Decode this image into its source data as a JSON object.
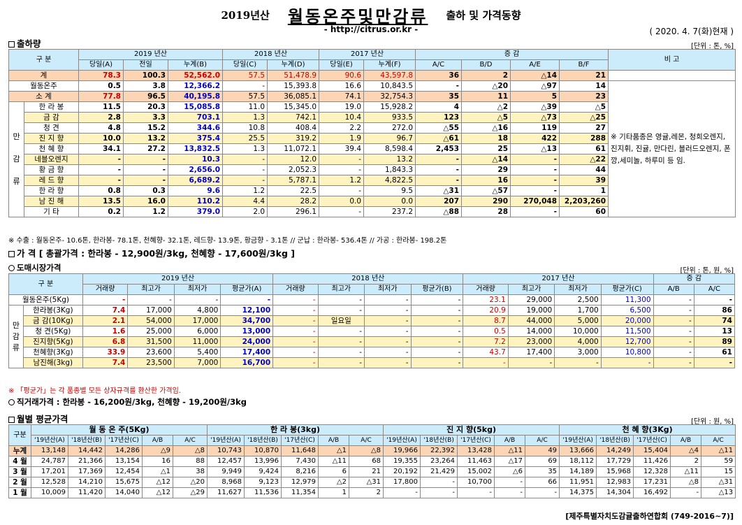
{
  "header": {
    "year": "2019년산",
    "main": "월동온주및만감류",
    "sub": "출하 및 가격동향",
    "url": "- http://citrus.or.kr -",
    "date": "( 2020. 4. 7(화)현재 )"
  },
  "s1": {
    "title": "출하량",
    "unit": "[단위 : 톤, %]",
    "h_gubun": "구  분",
    "h_2019": "2019 년산",
    "h_2018": "2018 년산",
    "h_2017": "2017 년산",
    "h_jg": "증    감",
    "h_bigo": "비 고",
    "sub": [
      "당일(A)",
      "전일",
      "누계(B)",
      "당일(C)",
      "누계(D)",
      "당일(E)",
      "누계(F)",
      "A/C",
      "B/D",
      "A/E",
      "B/F"
    ],
    "side": [
      "만",
      "감",
      "류"
    ],
    "rows": [
      [
        "계",
        "78.3",
        "100.3",
        "52,562.0",
        "57.5",
        "51,478.9",
        "90.6",
        "43,597.8",
        "36",
        "2",
        "△14",
        "21"
      ],
      [
        "월동온주",
        "0.5",
        "3.8",
        "12,366.2",
        "-",
        "15,393.8",
        "16.6",
        "10,843.5",
        "-",
        "△20",
        "△97",
        "14"
      ],
      [
        "소   계",
        "77.8",
        "96.5",
        "40,195.8",
        "57.5",
        "36,085.1",
        "74.1",
        "32,754.3",
        "35",
        "11",
        "5",
        "23"
      ],
      [
        "한 라 봉",
        "11.5",
        "20.3",
        "15,085.8",
        "11.0",
        "15,345.0",
        "19.0",
        "15,928.2",
        "4",
        "△2",
        "△39",
        "△5"
      ],
      [
        "금   감",
        "2.8",
        "3.3",
        "703.1",
        "1.3",
        "742.1",
        "10.4",
        "933.5",
        "123",
        "△5",
        "△73",
        "△25"
      ],
      [
        "청   견",
        "4.8",
        "15.2",
        "344.6",
        "10.8",
        "408.4",
        "2.2",
        "272.0",
        "△55",
        "△16",
        "119",
        "27"
      ],
      [
        "진 지 향",
        "10.0",
        "13.2",
        "375.4",
        "25.5",
        "319.2",
        "1.9",
        "96.7",
        "△61",
        "18",
        "422",
        "288"
      ],
      [
        "천 혜 향",
        "34.1",
        "27.2",
        "13,832.5",
        "1.3",
        "11,072.1",
        "39.4",
        "8,598.4",
        "2,453",
        "25",
        "△13",
        "61"
      ],
      [
        "네블오렌지",
        "-",
        "-",
        "10.3",
        "-",
        "12.0",
        "-",
        "13.2",
        "-",
        "△14",
        "-",
        "△22"
      ],
      [
        "황 금 향",
        "-",
        "-",
        "2,656.0",
        "-",
        "2,052.3",
        "-",
        "1,843.3",
        "-",
        "29",
        "-",
        "44"
      ],
      [
        "레 드 향",
        "-",
        "-",
        "6,689.2",
        "-",
        "5,787.1",
        "1.2",
        "4,822.5",
        "-",
        "16",
        "-",
        "39"
      ],
      [
        "한 라 향",
        "0.8",
        "0.3",
        "9.6",
        "1.2",
        "22.5",
        "-",
        "9.5",
        "△31",
        "△57",
        "-",
        "1"
      ],
      [
        "남 진 해",
        "13.5",
        "16.0",
        "110.2",
        "4.4",
        "28.2",
        "0.0",
        "0.0",
        "207",
        "290",
        "270,048",
        "2,203,260"
      ],
      [
        "기   타",
        "0.2",
        "1.2",
        "379.0",
        "2.0",
        "296.1",
        "-",
        "237.2",
        "△88",
        "28",
        "-",
        "60"
      ]
    ],
    "bigo": "※ 기타품종은 영귤,레몬, 청희오렌지, 진지휘, 진귤, 만다린, 블러드오렌지, 폰깡,세미놀, 하루미 등 임.",
    "note": "※ 수출 : 월동온주- 10.6톤, 한라봉- 78.1톤, 천혜향- 32.1톤, 레드향- 13.9톤, 황금향 - 3.1톤  // 군납 : 한라봉- 536.4톤  // 가공 : 한라봉- 198.2톤"
  },
  "s2": {
    "title": "가    격",
    "summary": "[ 총괄가격 : 한라봉 - 12,900원/3kg, 천혜향 - 17,600원/3kg ]"
  },
  "s3": {
    "title": "도매시장가격",
    "unit": "[단위 : 톤, 원, %]",
    "h_gubun": "구  분",
    "h_2019": "2019 년산",
    "h_2018": "2018 년산",
    "h_2017": "2017 년산",
    "h_jg": "증    감",
    "sub": [
      "거래량",
      "최고가",
      "최저가",
      "평균가(A)",
      "거래량",
      "최고가",
      "최저가",
      "평균가(B)",
      "거래량",
      "최고가",
      "최저가",
      "평균가(C)",
      "A/B",
      "A/C"
    ],
    "side": "만감류",
    "rows": [
      [
        "월동온주(5Kg)",
        "-",
        "-",
        "-",
        "-",
        "-",
        "-",
        "-",
        "-",
        "23.1",
        "29,000",
        "2,500",
        "11,300",
        "-",
        "-"
      ],
      [
        "한라봉(3Kg)",
        "7.4",
        "17,000",
        "4,800",
        "12,100",
        "-",
        "-",
        "-",
        "-",
        "20.9",
        "19,000",
        "1,700",
        "6,500",
        "-",
        "86"
      ],
      [
        "금  감(10Kg)",
        "2.1",
        "54,000",
        "17,000",
        "34,700",
        "-",
        "일요일",
        "-",
        "-",
        "8.7",
        "44,000",
        "5,000",
        "20,000",
        "-",
        "74"
      ],
      [
        "청  견(5Kg)",
        "1.6",
        "25,000",
        "6,000",
        "13,000",
        "-",
        "-",
        "-",
        "-",
        "0.5",
        "14,000",
        "10,000",
        "11,500",
        "-",
        "13"
      ],
      [
        "진지향(5Kg)",
        "6.8",
        "31,500",
        "11,000",
        "24,000",
        "-",
        "-",
        "-",
        "-",
        "7.2",
        "23,000",
        "4,000",
        "12,700",
        "-",
        "89"
      ],
      [
        "천혜향(3Kg)",
        "33.9",
        "23,600",
        "5,400",
        "17,400",
        "-",
        "-",
        "-",
        "-",
        "43.7",
        "17,400",
        "3,000",
        "10,800",
        "-",
        "61"
      ],
      [
        "남진해(3kg)",
        "7.4",
        "23,500",
        "7,000",
        "16,700",
        "-",
        "-",
        "-",
        "-",
        "-",
        "-",
        "-",
        "-",
        "-",
        "-"
      ]
    ],
    "note": "※ 「평균가」는 각 품종별 모든 상자규격를 환산한 가격임.",
    "direct": "직거래가격 : 한라봉 - 16,200원/3kg,  천혜향 - 19,200원/3kg"
  },
  "s4": {
    "title": "월별 평균가격",
    "unit": "[단위 : 원, %]",
    "h_gubun": "구분",
    "groups": [
      "월 동 온 주(5Kg)",
      "한  라  봉(3kg)",
      "진 지 향(5kg)",
      "천 혜 향(3Kg)"
    ],
    "sub": [
      "'19년산(A)",
      "'18년산(B)",
      "'17년산(C)",
      "A/B",
      "A/C"
    ],
    "rows": [
      [
        "누계",
        "13,148",
        "14,442",
        "14,286",
        "△9",
        "△8",
        "10,743",
        "10,870",
        "11,648",
        "△1",
        "△8",
        "19,966",
        "22,392",
        "13,428",
        "△11",
        "49",
        "13,666",
        "14,249",
        "15,404",
        "△4",
        "△11"
      ],
      [
        "4 월",
        "24,787",
        "21,366",
        "13,154",
        "16",
        "88",
        "12,457",
        "13,996",
        "7,430",
        "△11",
        "68",
        "19,355",
        "23,264",
        "11,463",
        "△17",
        "69",
        "18,112",
        "17,729",
        "11,426",
        "2",
        "59"
      ],
      [
        "3 월",
        "17,201",
        "17,369",
        "12,454",
        "△1",
        "38",
        "9,949",
        "9,424",
        "8,216",
        "6",
        "21",
        "20,192",
        "21,429",
        "15,002",
        "△6",
        "35",
        "14,189",
        "15,968",
        "12,328",
        "△11",
        "15"
      ],
      [
        "2 월",
        "12,528",
        "14,210",
        "15,675",
        "△12",
        "△20",
        "8,968",
        "9,123",
        "12,979",
        "△2",
        "△31",
        "17,800",
        "-",
        "10,700",
        "-",
        "66",
        "11,951",
        "12,983",
        "17,231",
        "△8",
        "△31"
      ],
      [
        "1 월",
        "10,009",
        "11,420",
        "14,040",
        "△12",
        "△29",
        "11,627",
        "11,536",
        "11,354",
        "1",
        "2",
        "-",
        "-",
        "-",
        "-",
        "-",
        "14,375",
        "14,304",
        "16,492",
        "-",
        "△13"
      ]
    ]
  },
  "footer": "[제주특별자치도감귤출하연합회 (749-2016~7)]"
}
